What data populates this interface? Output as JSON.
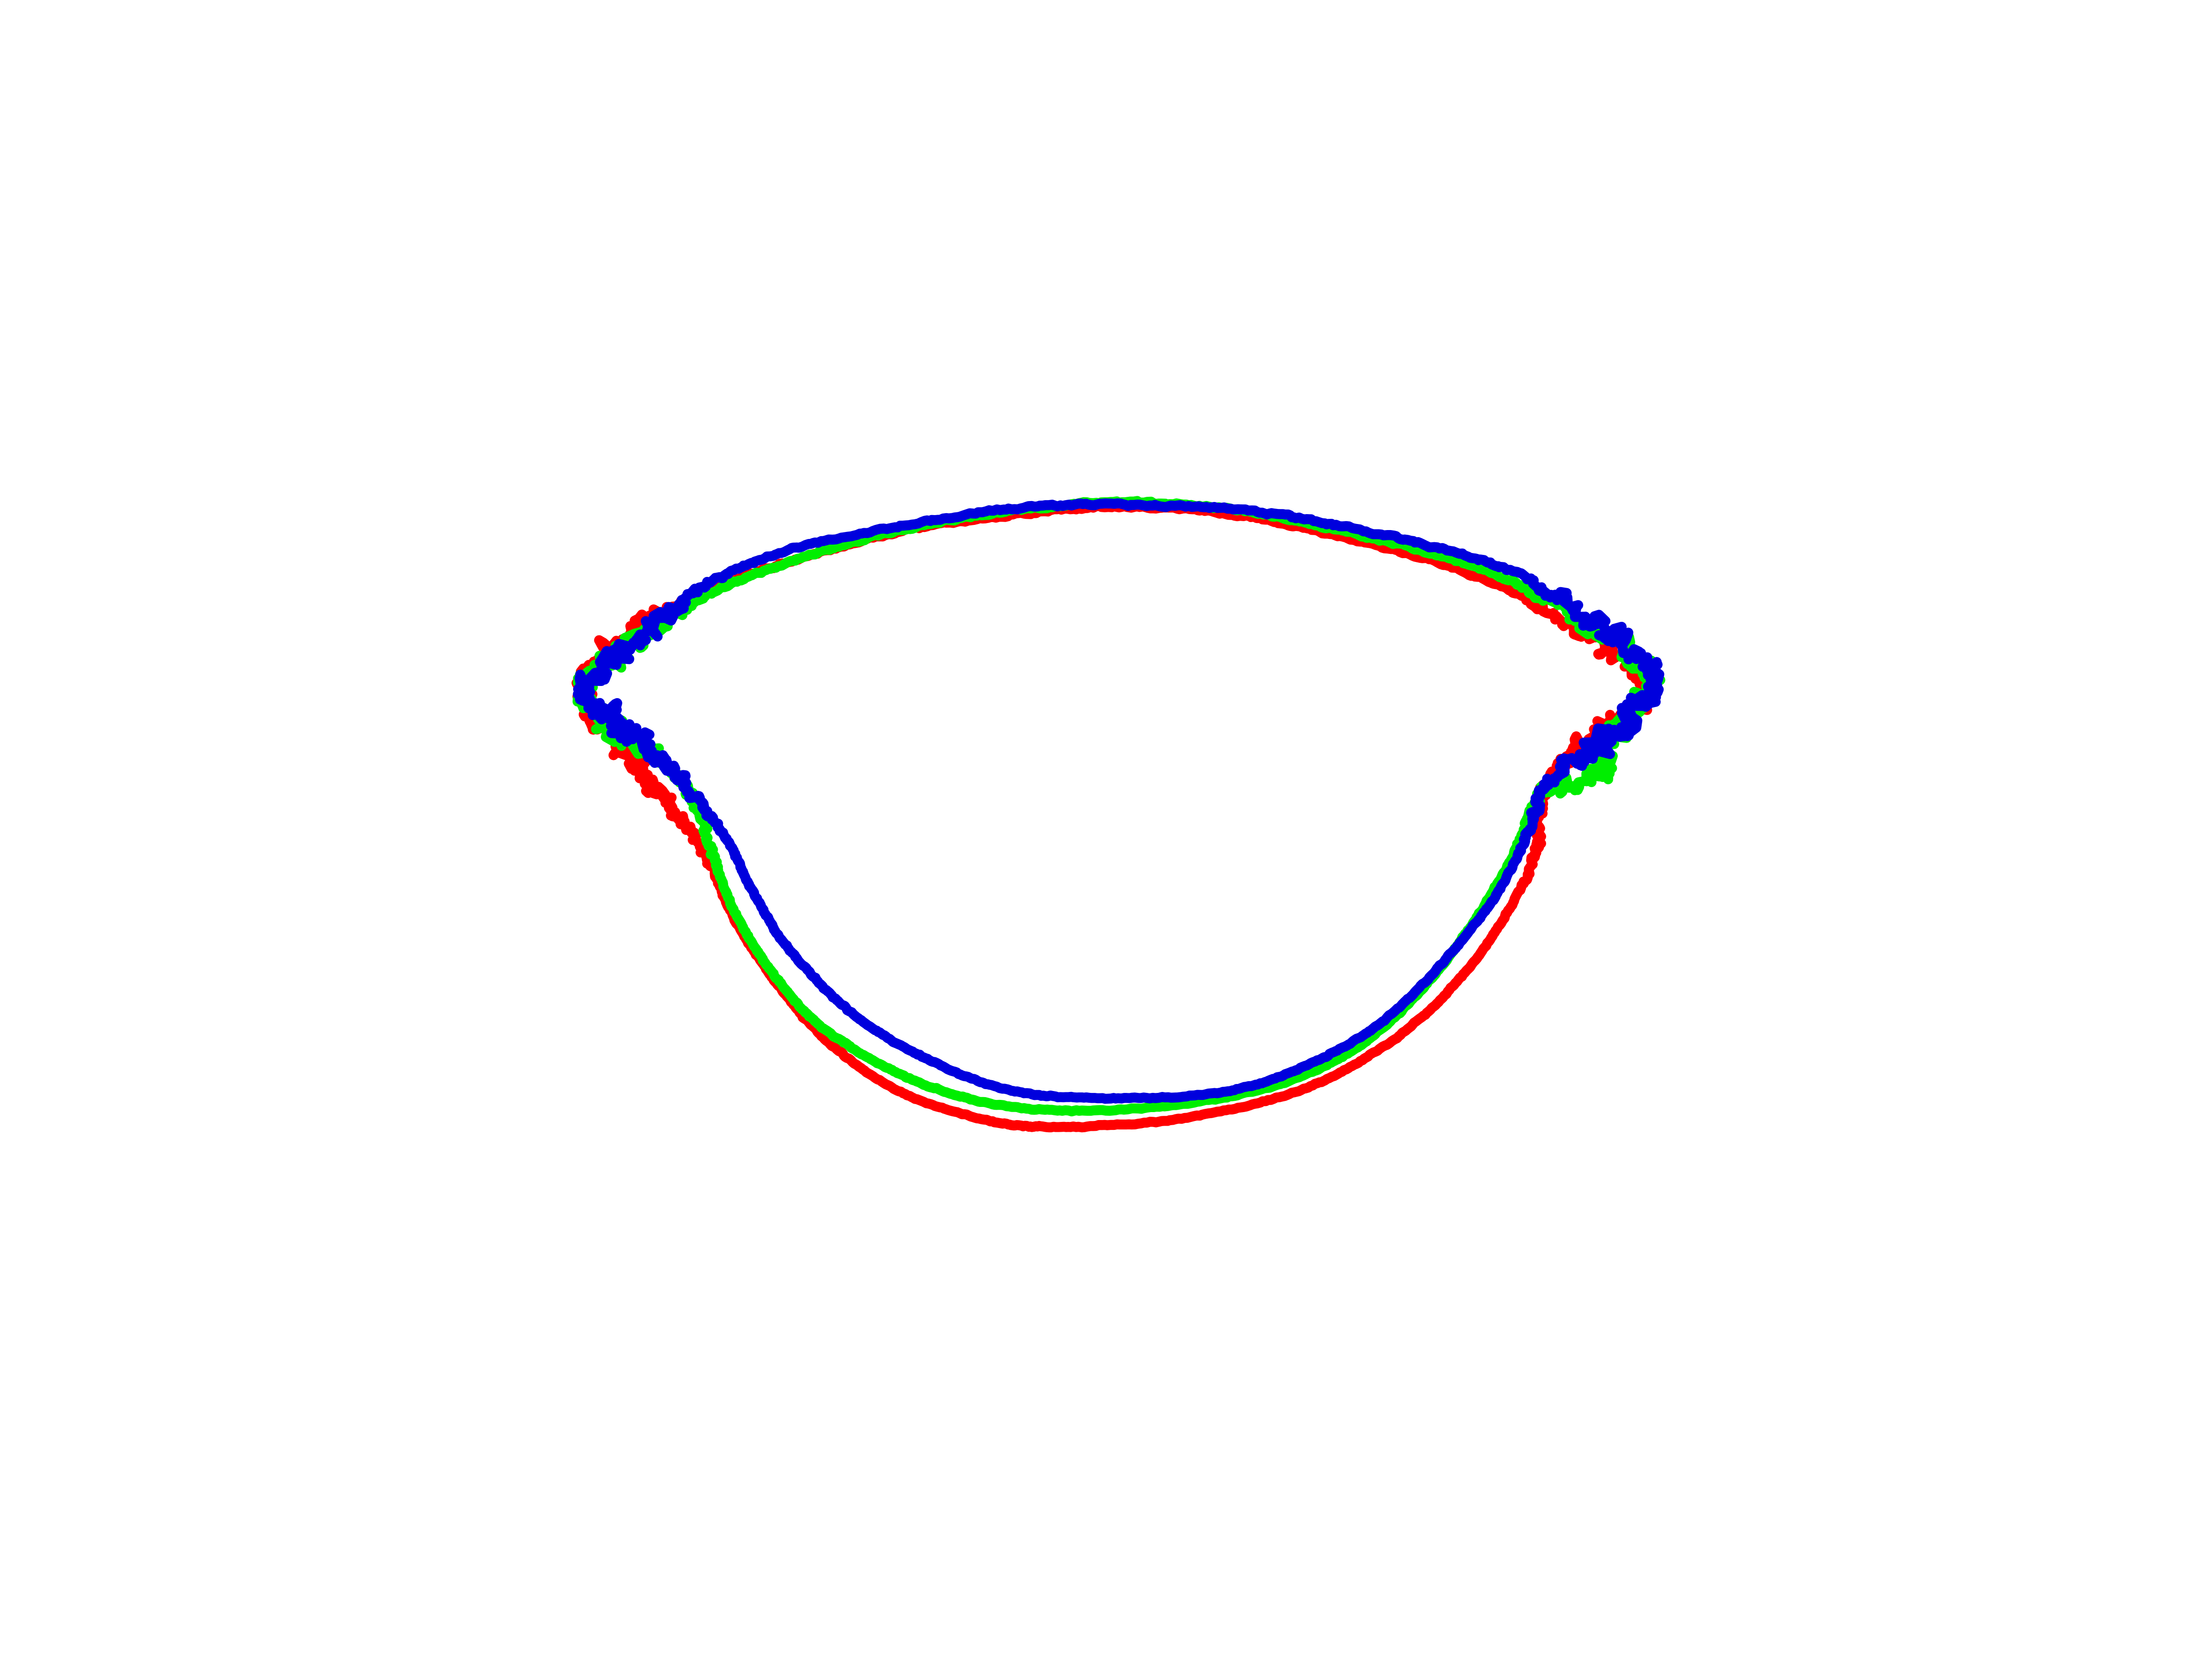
{
  "figure": {
    "type": "outline-overlay",
    "background": "#ffffff",
    "contours": [
      {
        "color": "#ff0000",
        "color_name": "red"
      },
      {
        "color": "#00ee00",
        "color_name": "green"
      },
      {
        "color": "#0000dd",
        "color_name": "blue"
      }
    ]
  }
}
